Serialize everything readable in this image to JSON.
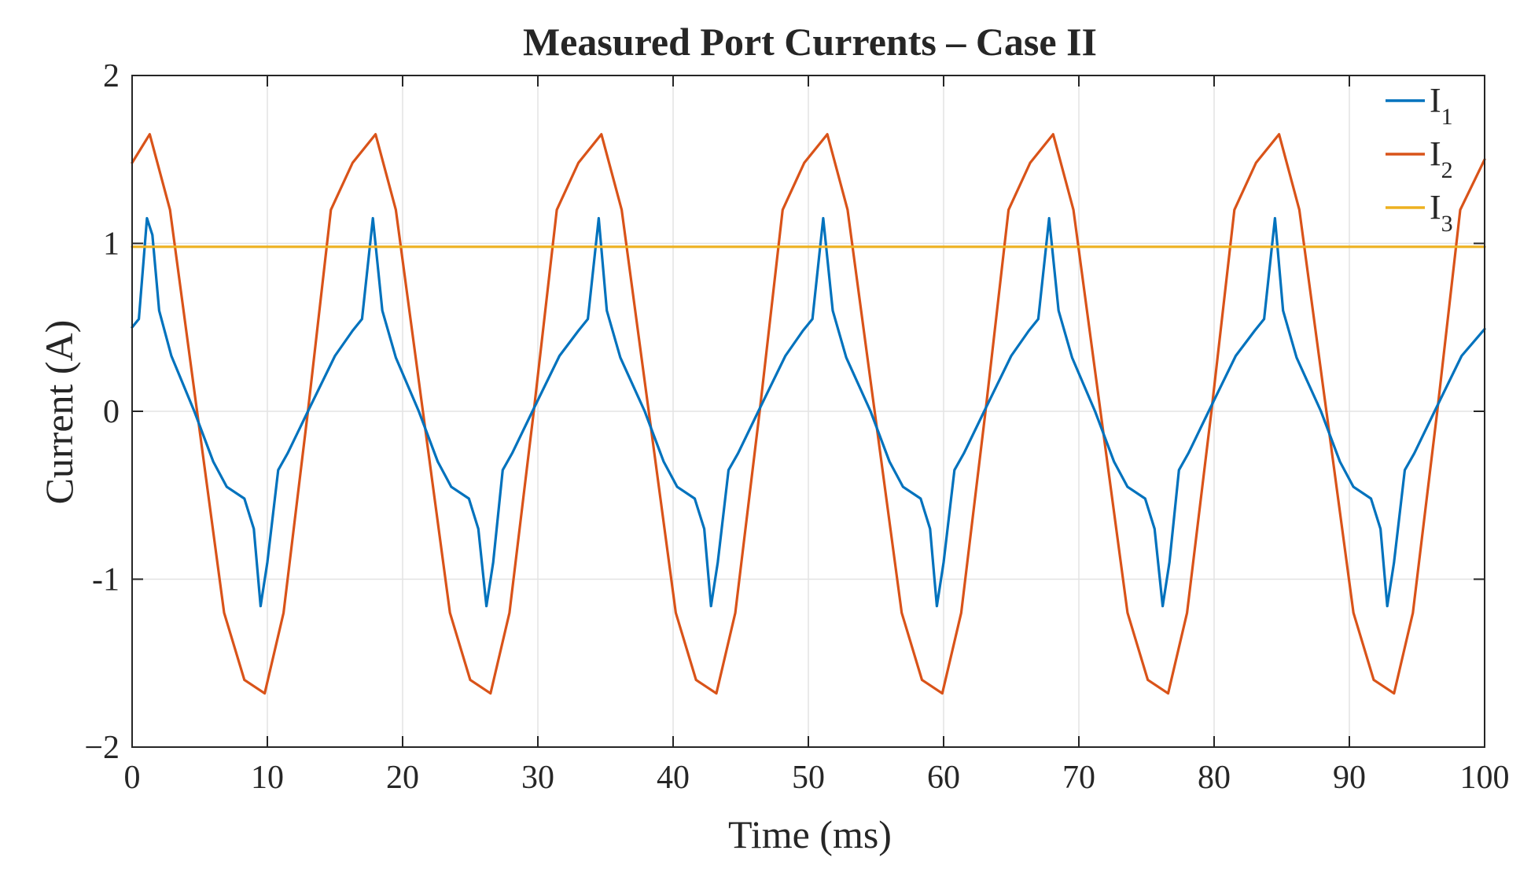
{
  "chart_data": {
    "type": "line",
    "title": "Measured Port Currents – Case II",
    "xlabel": "Time (ms)",
    "ylabel": "Current (A)",
    "xlim": [
      0,
      100
    ],
    "ylim": [
      -2,
      2
    ],
    "xticks": [
      0,
      10,
      20,
      30,
      40,
      50,
      60,
      70,
      80,
      90,
      100
    ],
    "yticks": [
      2,
      1,
      0,
      -1,
      -2
    ],
    "xtick_labels": [
      "0",
      "10",
      "20",
      "30",
      "40",
      "50",
      "60",
      "70",
      "80",
      "90",
      "100"
    ],
    "ytick_labels": [
      "2",
      "1",
      "0",
      "-1",
      "−2"
    ],
    "grid": true,
    "legend_position": "top-right",
    "period_ms": 16.67,
    "series": [
      {
        "name": "I1",
        "name_base": "I",
        "name_sub": "1",
        "color": "#0072BD",
        "x": [
          0.0,
          0.5,
          1.1,
          1.5,
          2.0,
          2.9,
          4.6,
          6.0,
          7.0,
          8.3,
          9.0,
          9.5,
          10.0,
          10.8,
          11.5,
          13.0,
          15.0,
          16.3,
          17.0,
          17.8,
          18.5,
          19.5,
          21.2,
          22.6,
          23.6,
          24.9,
          25.6,
          26.2,
          26.7,
          27.4,
          28.1,
          29.6,
          31.6,
          33.0,
          33.7,
          34.5,
          35.1,
          36.1,
          37.9,
          39.3,
          40.3,
          41.6,
          42.3,
          42.8,
          43.3,
          44.1,
          44.8,
          46.3,
          48.3,
          49.6,
          50.3,
          51.1,
          51.8,
          52.8,
          54.6,
          56.0,
          57.0,
          58.3,
          59.0,
          59.5,
          60.0,
          60.8,
          61.5,
          63.0,
          65.0,
          66.3,
          67.0,
          67.8,
          68.5,
          69.5,
          71.2,
          72.6,
          73.6,
          74.9,
          75.6,
          76.2,
          76.7,
          77.4,
          78.1,
          79.6,
          81.6,
          83.0,
          83.7,
          84.5,
          85.1,
          86.1,
          87.9,
          89.3,
          90.3,
          91.6,
          92.3,
          92.8,
          93.3,
          94.1,
          94.8,
          96.3,
          98.3,
          100.0
        ],
        "y": [
          0.5,
          0.55,
          1.15,
          1.05,
          0.6,
          0.33,
          0.0,
          -0.3,
          -0.45,
          -0.52,
          -0.7,
          -1.16,
          -0.9,
          -0.35,
          -0.25,
          0.0,
          0.33,
          0.48,
          0.55,
          1.15,
          0.6,
          0.32,
          0.0,
          -0.3,
          -0.45,
          -0.52,
          -0.7,
          -1.16,
          -0.9,
          -0.35,
          -0.25,
          0.0,
          0.33,
          0.48,
          0.55,
          1.15,
          0.6,
          0.32,
          0.0,
          -0.3,
          -0.45,
          -0.52,
          -0.7,
          -1.16,
          -0.9,
          -0.35,
          -0.25,
          0.0,
          0.33,
          0.48,
          0.55,
          1.15,
          0.6,
          0.32,
          0.0,
          -0.3,
          -0.45,
          -0.52,
          -0.7,
          -1.16,
          -0.9,
          -0.35,
          -0.25,
          0.0,
          0.33,
          0.48,
          0.55,
          1.15,
          0.6,
          0.32,
          0.0,
          -0.3,
          -0.45,
          -0.52,
          -0.7,
          -1.16,
          -0.9,
          -0.35,
          -0.25,
          0.0,
          0.33,
          0.48,
          0.55,
          1.15,
          0.6,
          0.32,
          0.0,
          -0.3,
          -0.45,
          -0.52,
          -0.7,
          -1.16,
          -0.9,
          -0.35,
          -0.25,
          0.0,
          0.33,
          0.49
        ]
      },
      {
        "name": "I2",
        "name_base": "I",
        "name_sub": "2",
        "color": "#D95319",
        "x": [
          0.0,
          1.3,
          2.8,
          4.8,
          6.8,
          8.3,
          9.8,
          11.2,
          13.0,
          14.7,
          16.3,
          18.0,
          19.5,
          21.5,
          23.5,
          25.0,
          26.5,
          27.9,
          29.7,
          31.4,
          33.0,
          34.7,
          36.2,
          38.2,
          40.2,
          41.7,
          43.2,
          44.6,
          46.4,
          48.1,
          49.7,
          51.4,
          52.9,
          54.9,
          56.9,
          58.4,
          59.9,
          61.3,
          63.1,
          64.8,
          66.4,
          68.1,
          69.6,
          71.6,
          73.6,
          75.1,
          76.6,
          78.0,
          79.8,
          81.5,
          83.1,
          84.8,
          86.3,
          88.3,
          90.3,
          91.8,
          93.3,
          94.7,
          96.5,
          98.2,
          100.0
        ],
        "y": [
          1.48,
          1.65,
          1.2,
          0.0,
          -1.2,
          -1.6,
          -1.68,
          -1.2,
          0.0,
          1.2,
          1.48,
          1.65,
          1.2,
          0.0,
          -1.2,
          -1.6,
          -1.68,
          -1.2,
          0.0,
          1.2,
          1.48,
          1.65,
          1.2,
          0.0,
          -1.2,
          -1.6,
          -1.68,
          -1.2,
          0.0,
          1.2,
          1.48,
          1.65,
          1.2,
          0.0,
          -1.2,
          -1.6,
          -1.68,
          -1.2,
          0.0,
          1.2,
          1.48,
          1.65,
          1.2,
          0.0,
          -1.2,
          -1.6,
          -1.68,
          -1.2,
          0.0,
          1.2,
          1.48,
          1.65,
          1.2,
          0.0,
          -1.2,
          -1.6,
          -1.68,
          -1.2,
          0.0,
          1.2,
          1.5
        ]
      },
      {
        "name": "I3",
        "name_base": "I",
        "name_sub": "3",
        "color": "#EDB120",
        "x": [
          0,
          100
        ],
        "y": [
          0.98,
          0.98
        ]
      }
    ]
  }
}
